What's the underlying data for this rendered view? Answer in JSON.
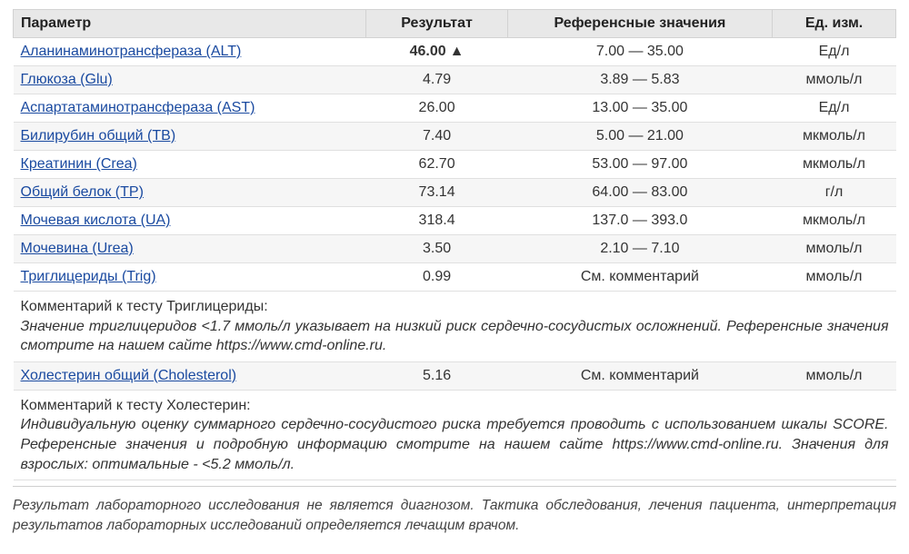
{
  "table": {
    "headers": {
      "param": "Параметр",
      "result": "Результат",
      "ref": "Референсные значения",
      "unit": "Ед. изм."
    },
    "rows": [
      {
        "param": "Аланинаминотрансфераза (ALT)",
        "result": "46.00",
        "abnormal": true,
        "arrow": "▲",
        "ref": "7.00 — 35.00",
        "unit": "Ед/л"
      },
      {
        "param": "Глюкоза (Glu)",
        "result": "4.79",
        "abnormal": false,
        "arrow": "",
        "ref": "3.89 — 5.83",
        "unit": "ммоль/л"
      },
      {
        "param": "Аспартатаминотрансфераза (AST)",
        "result": "26.00",
        "abnormal": false,
        "arrow": "",
        "ref": "13.00 — 35.00",
        "unit": "Ед/л"
      },
      {
        "param": "Билирубин общий (TB)",
        "result": "7.40",
        "abnormal": false,
        "arrow": "",
        "ref": "5.00 — 21.00",
        "unit": "мкмоль/л"
      },
      {
        "param": "Креатинин (Crea)",
        "result": "62.70",
        "abnormal": false,
        "arrow": "",
        "ref": "53.00 — 97.00",
        "unit": "мкмоль/л"
      },
      {
        "param": "Общий белок (TP)",
        "result": "73.14",
        "abnormal": false,
        "arrow": "",
        "ref": "64.00 — 83.00",
        "unit": "г/л"
      },
      {
        "param": "Мочевая кислота (UA)",
        "result": "318.4",
        "abnormal": false,
        "arrow": "",
        "ref": "137.0 — 393.0",
        "unit": "мкмоль/л"
      },
      {
        "param": "Мочевина (Urea)",
        "result": "3.50",
        "abnormal": false,
        "arrow": "",
        "ref": "2.10 — 7.10",
        "unit": "ммоль/л"
      },
      {
        "param": "Триглицериды (Trig)",
        "result": "0.99",
        "abnormal": false,
        "arrow": "",
        "ref": "См. комментарий",
        "unit": "ммоль/л"
      },
      {
        "comment_title": "Комментарий к тесту Триглицериды:",
        "comment_body": "Значение триглицеридов <1.7 ммоль/л указывает на низкий риск сердечно-сосудистых осложнений. Референсные значения смотрите на нашем сайте https://www.cmd-online.ru."
      },
      {
        "param": "Холестерин общий (Cholesterol)",
        "result": "5.16",
        "abnormal": false,
        "arrow": "",
        "ref": "См. комментарий",
        "unit": "ммоль/л"
      },
      {
        "comment_title": "Комментарий к тесту Холестерин:",
        "comment_body": "Индивидуальную оценку суммарного сердечно-сосудистого риска требуется проводить с использованием шкалы SCORE. Референсные значения и подробную информацию смотрите на нашем сайте https://www.cmd-online.ru. Значения для взрослых: оптимальные - <5.2 ммоль/л."
      }
    ]
  },
  "disclaimer": "Результат лабораторного исследования не является диагнозом. Тактика обследования, лечения пациента, интерпретация результатов лабораторных исследований определяется лечащим врачом."
}
